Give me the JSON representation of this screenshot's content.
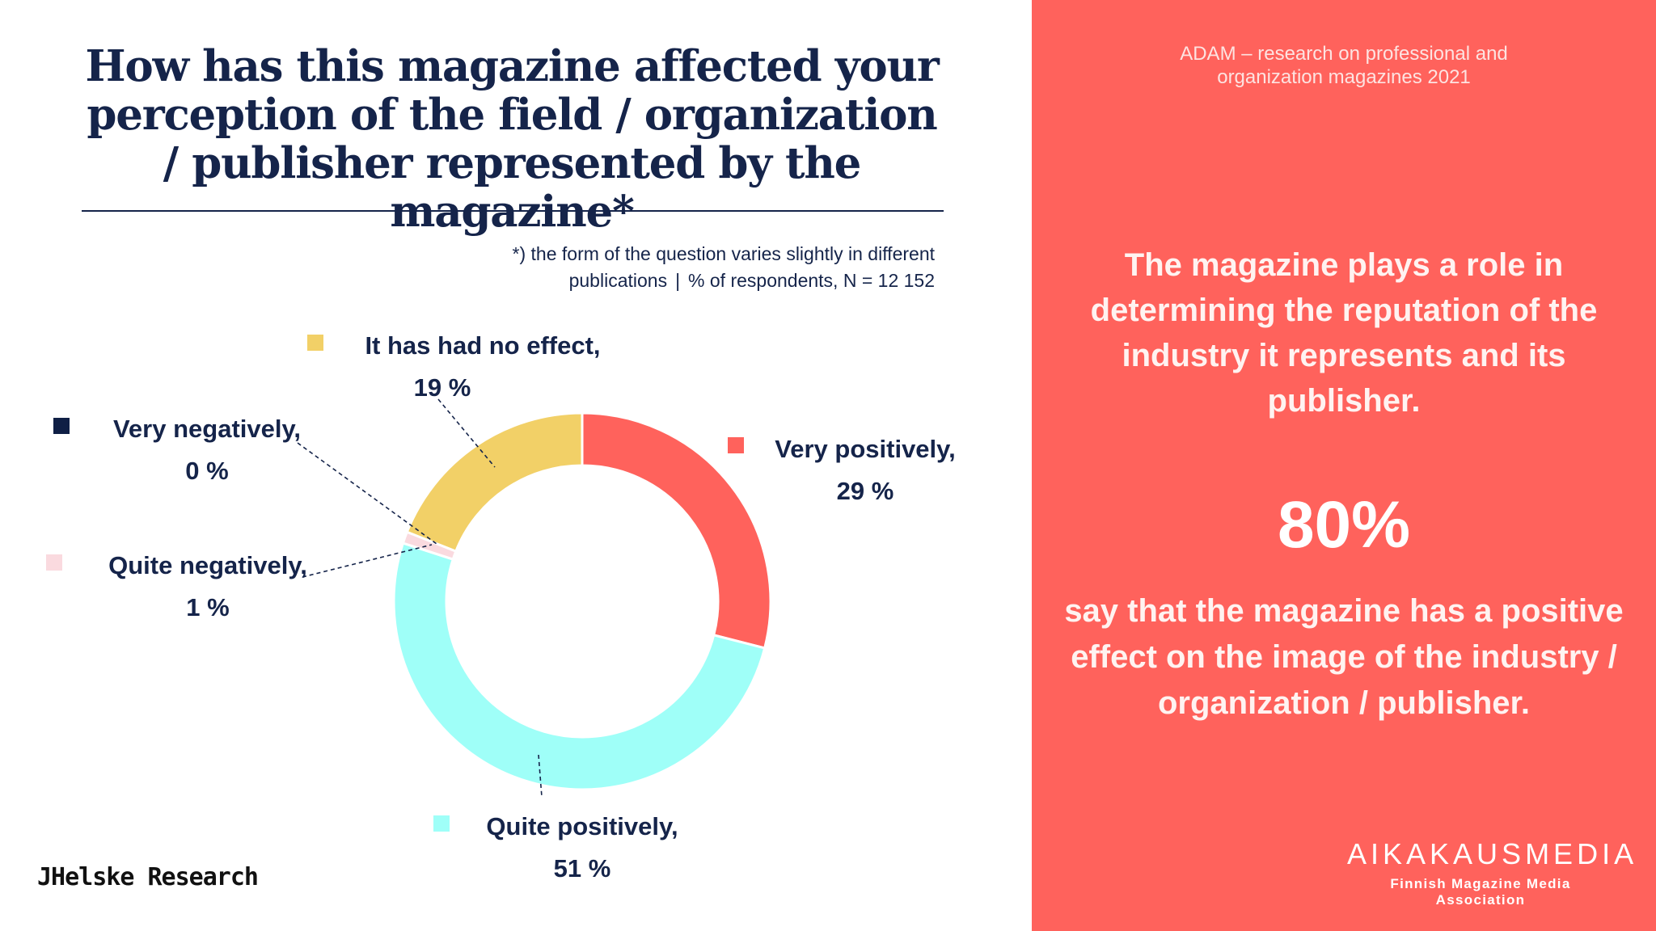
{
  "title": "How has this magazine affected your perception of the field / organization / publisher represented by the magazine*",
  "note": {
    "line1": "*) the form of the question varies slightly in different",
    "line2a": "publications",
    "separator": "|",
    "line2b": "% of respondents, N = 12 152"
  },
  "chart_data": {
    "type": "pie",
    "donut": true,
    "slices": [
      {
        "label": "Very positively,",
        "value": 29,
        "value_text": "29 %",
        "color": "#ff625c"
      },
      {
        "label": "Quite positively,",
        "value": 51,
        "value_text": "51 %",
        "color": "#9ffff8"
      },
      {
        "label": "Quite negatively,",
        "value": 1,
        "value_text": "1 %",
        "color": "#fadadf"
      },
      {
        "label": "Very negatively,",
        "value": 0,
        "value_text": "0 %",
        "color": "#0f1f45"
      },
      {
        "label": "It has had no effect,",
        "value": 19,
        "value_text": "19 %",
        "color": "#f2d067"
      }
    ]
  },
  "footer_left": "JHelske Research",
  "sidebar": {
    "study_line1": "ADAM – research on professional and",
    "study_line2": "organization magazines 2021",
    "message": "The magazine plays a role in determining the reputation of the industry it represents and its publisher.",
    "stat": "80%",
    "stat_text": "say that the magazine has a positive effect on the image of the industry / organization / publisher.",
    "brand": "AIKAKAUSMEDIA",
    "brand_sub": "Finnish Magazine Media Association"
  }
}
